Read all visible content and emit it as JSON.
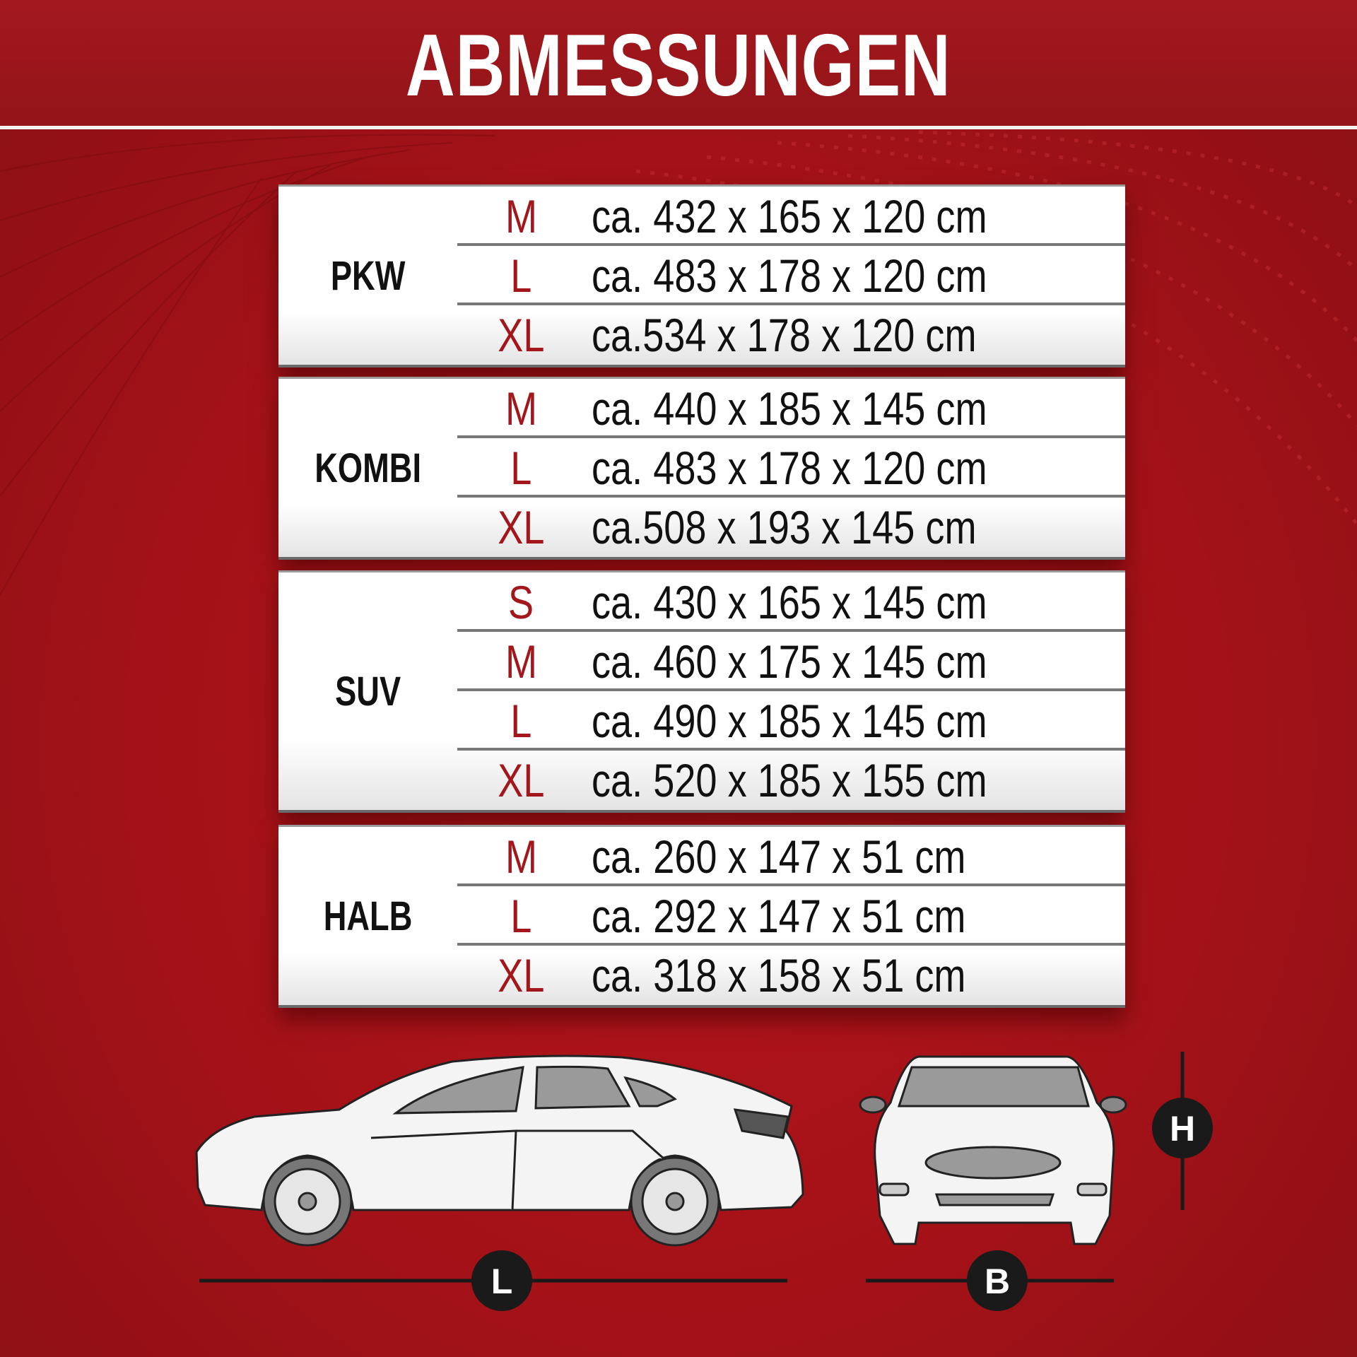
{
  "title": "ABMESSUNGEN",
  "colors": {
    "background": "#a8141a",
    "header": "#9c161c",
    "size_label": "#a3161c",
    "text": "#111111"
  },
  "tables": [
    {
      "category": "PKW",
      "rows": [
        {
          "size": "M",
          "dims": "ca. 432 x 165 x 120 cm"
        },
        {
          "size": "L",
          "dims": "ca. 483 x 178 x 120 cm"
        },
        {
          "size": "XL",
          "dims": "ca.534 x 178 x 120 cm"
        }
      ]
    },
    {
      "category": "KOMBI",
      "rows": [
        {
          "size": "M",
          "dims": "ca. 440 x 185 x 145 cm"
        },
        {
          "size": "L",
          "dims": "ca. 483 x 178 x 120 cm"
        },
        {
          "size": "XL",
          "dims": "ca.508 x 193 x 145 cm"
        }
      ]
    },
    {
      "category": "SUV",
      "rows": [
        {
          "size": "S",
          "dims": "ca. 430 x 165 x 145 cm"
        },
        {
          "size": "M",
          "dims": "ca. 460 x 175 x 145 cm"
        },
        {
          "size": "L",
          "dims": "ca. 490 x 185 x 145 cm"
        },
        {
          "size": "XL",
          "dims": "ca. 520 x 185 x 155 cm"
        }
      ]
    },
    {
      "category": "HALB",
      "rows": [
        {
          "size": "M",
          "dims": "ca. 260 x 147 x 51 cm"
        },
        {
          "size": "L",
          "dims": "ca. 292 x 147 x 51 cm"
        },
        {
          "size": "XL",
          "dims": "ca. 318 x 158 x 51 cm"
        }
      ]
    }
  ],
  "diagram": {
    "length_label": "L",
    "width_label": "B",
    "height_label": "H"
  }
}
